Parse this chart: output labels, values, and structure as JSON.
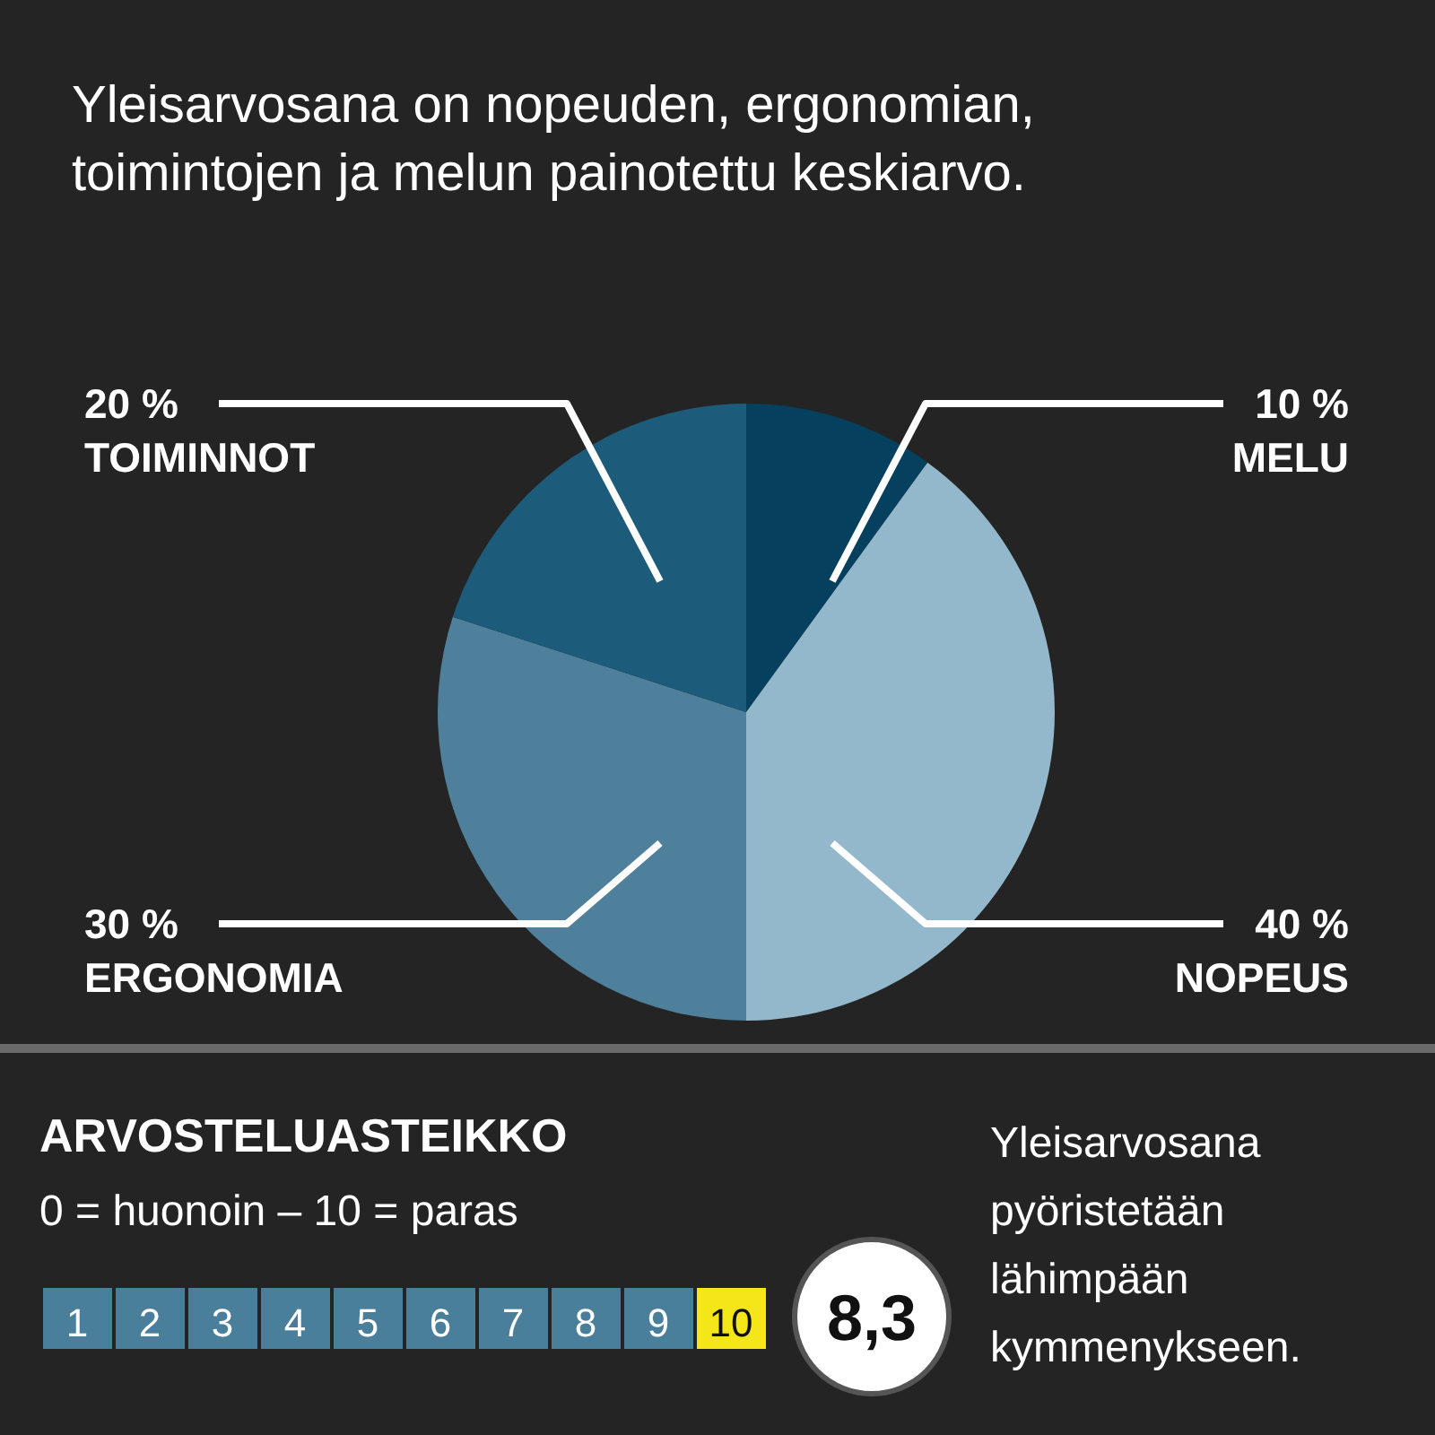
{
  "chart_data": {
    "type": "pie",
    "title": "Yleisarvosana on nopeuden, ergonomian, toimintojen ja melun painotettu keskiarvo.",
    "categories": [
      "MELU",
      "NOPEUS",
      "ERGONOMIA",
      "TOIMINNOT"
    ],
    "values": [
      10,
      40,
      30,
      20
    ],
    "colors": [
      "#05415f",
      "#93b7cb",
      "#4e7f9b",
      "#1d5b7a"
    ],
    "value_labels": [
      "10 %",
      "40 %",
      "30 %",
      "20 %"
    ],
    "annotations": [
      "ARVOSTELUASTEIKKO",
      "0 = huonoin – 10 = paras",
      "1",
      "2",
      "3",
      "4",
      "5",
      "6",
      "7",
      "8",
      "9",
      "10",
      "8,3",
      "Yleisarvosana pyöristetään lähimpään kymmenykseen."
    ]
  }
}
